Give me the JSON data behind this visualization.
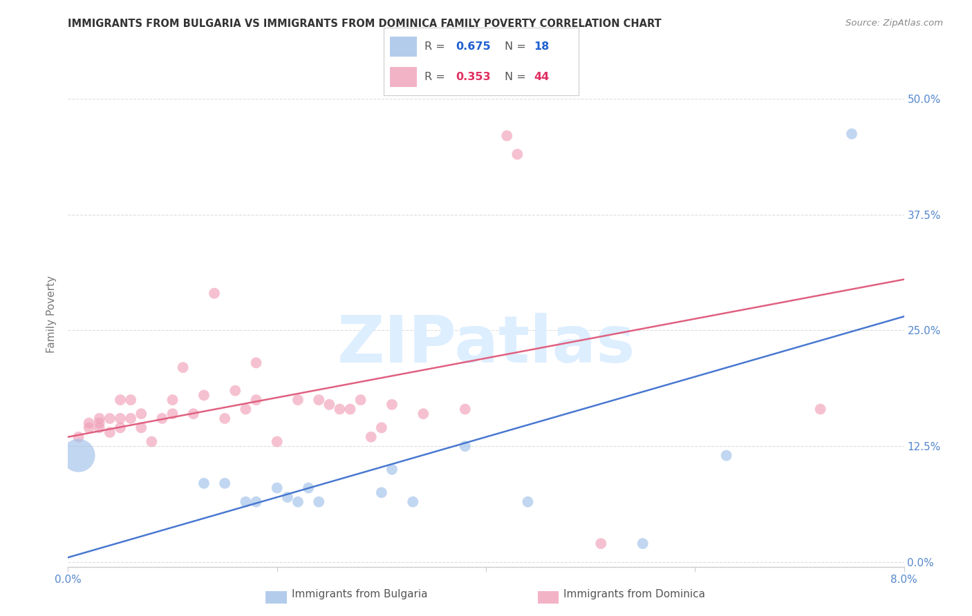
{
  "title": "IMMIGRANTS FROM BULGARIA VS IMMIGRANTS FROM DOMINICA FAMILY POVERTY CORRELATION CHART",
  "source": "Source: ZipAtlas.com",
  "ylabel": "Family Poverty",
  "ytick_labels": [
    "0.0%",
    "12.5%",
    "25.0%",
    "37.5%",
    "50.0%"
  ],
  "ytick_values": [
    0.0,
    0.125,
    0.25,
    0.375,
    0.5
  ],
  "xtick_labels": [
    "0.0%",
    "",
    "",
    "",
    "8.0%"
  ],
  "xtick_values": [
    0.0,
    0.02,
    0.04,
    0.06,
    0.08
  ],
  "xlim": [
    0.0,
    0.08
  ],
  "ylim": [
    -0.005,
    0.54
  ],
  "background_color": "#ffffff",
  "watermark_text": "ZIPatlas",
  "watermark_color": "#ddeeff",
  "bulgaria_scatter_color": "#a0c0e8",
  "dominica_scatter_color": "#f0a0b8",
  "bulgaria_line_color": "#4878d0",
  "dominica_line_color": "#e06080",
  "legend_box_color": "#ffffff",
  "legend_border_color": "#cccccc",
  "bulgaria_R": "0.675",
  "bulgaria_N": "18",
  "dominica_R": "0.353",
  "dominica_N": "44",
  "legend_R_bulgaria_color": "#2060d0",
  "legend_N_bulgaria_color": "#2060d0",
  "legend_R_dominica_color": "#e03060",
  "legend_N_dominica_color": "#e03060",
  "grid_color": "#dddddd",
  "axis_color": "#cccccc",
  "tick_label_color": "#5588cc",
  "ylabel_color": "#777777",
  "title_color": "#333333",
  "source_color": "#888888",
  "bulgaria_line_x": [
    0.0,
    0.08
  ],
  "bulgaria_line_y": [
    0.005,
    0.265
  ],
  "dominica_line_x": [
    0.0,
    0.08
  ],
  "dominica_line_y": [
    0.135,
    0.305
  ],
  "bulgaria_x": [
    0.001,
    0.013,
    0.015,
    0.017,
    0.018,
    0.02,
    0.021,
    0.022,
    0.023,
    0.024,
    0.03,
    0.031,
    0.033,
    0.038,
    0.044,
    0.055,
    0.063,
    0.075
  ],
  "bulgaria_y": [
    0.115,
    0.085,
    0.085,
    0.065,
    0.065,
    0.08,
    0.07,
    0.065,
    0.08,
    0.065,
    0.075,
    0.1,
    0.065,
    0.125,
    0.065,
    0.02,
    0.115,
    0.462
  ],
  "bulgaria_sizes": [
    1200,
    130,
    130,
    130,
    130,
    130,
    130,
    130,
    130,
    130,
    130,
    130,
    130,
    130,
    130,
    130,
    130,
    130
  ],
  "dominica_x": [
    0.001,
    0.002,
    0.002,
    0.003,
    0.003,
    0.003,
    0.004,
    0.004,
    0.005,
    0.005,
    0.005,
    0.006,
    0.006,
    0.007,
    0.007,
    0.008,
    0.009,
    0.01,
    0.01,
    0.011,
    0.012,
    0.013,
    0.014,
    0.015,
    0.016,
    0.017,
    0.018,
    0.018,
    0.02,
    0.022,
    0.024,
    0.025,
    0.026,
    0.027,
    0.028,
    0.029,
    0.03,
    0.031,
    0.034,
    0.038,
    0.042,
    0.043,
    0.051,
    0.072
  ],
  "dominica_y": [
    0.135,
    0.15,
    0.145,
    0.155,
    0.15,
    0.145,
    0.155,
    0.14,
    0.155,
    0.175,
    0.145,
    0.155,
    0.175,
    0.16,
    0.145,
    0.13,
    0.155,
    0.16,
    0.175,
    0.21,
    0.16,
    0.18,
    0.29,
    0.155,
    0.185,
    0.165,
    0.175,
    0.215,
    0.13,
    0.175,
    0.175,
    0.17,
    0.165,
    0.165,
    0.175,
    0.135,
    0.145,
    0.17,
    0.16,
    0.165,
    0.46,
    0.44,
    0.02,
    0.165
  ],
  "dominica_sizes": [
    130,
    130,
    130,
    130,
    130,
    130,
    130,
    130,
    130,
    130,
    130,
    130,
    130,
    130,
    130,
    130,
    130,
    130,
    130,
    130,
    130,
    130,
    130,
    130,
    130,
    130,
    130,
    130,
    130,
    130,
    130,
    130,
    130,
    130,
    130,
    130,
    130,
    130,
    130,
    130,
    130,
    130,
    130,
    130
  ]
}
